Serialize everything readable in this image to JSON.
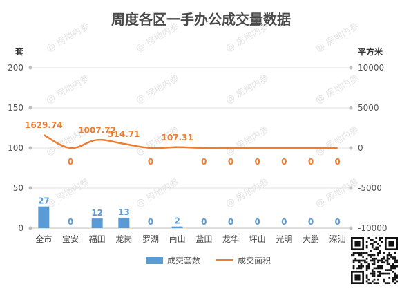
{
  "chart_data": {
    "type": "bar+line",
    "title": "周度各区一手办公成交量数据",
    "categories": [
      "全市",
      "宝安",
      "福田",
      "龙岗",
      "罗湖",
      "南山",
      "盐田",
      "龙华",
      "坪山",
      "光明",
      "大鹏",
      "深汕"
    ],
    "left_axis": {
      "unit": "套",
      "ticks": [
        "0",
        "50",
        "100",
        "150",
        "200"
      ],
      "range": [
        0,
        200
      ]
    },
    "right_axis": {
      "unit": "平方米",
      "ticks": [
        "-10000",
        "-5000",
        "0",
        "5000",
        "10000"
      ],
      "range": [
        -10000,
        10000
      ]
    },
    "series": [
      {
        "name": "成交套数",
        "kind": "bar",
        "axis": "left",
        "color": "#5b9bd5",
        "values": [
          27,
          0,
          12,
          13,
          0,
          2,
          0,
          0,
          0,
          0,
          0,
          0
        ],
        "labels": [
          "27",
          "0",
          "12",
          "13",
          "0",
          "2",
          "0",
          "0",
          "0",
          "0",
          "0",
          "0"
        ]
      },
      {
        "name": "成交面积",
        "kind": "line",
        "axis": "right",
        "color": "#ed7d31",
        "values": [
          1629.74,
          0,
          1007.72,
          514.71,
          0,
          107.31,
          0,
          0,
          0,
          0,
          0,
          0
        ],
        "labels": [
          "1629.74",
          "0",
          "1007.72",
          "514.71",
          "0",
          "107.31",
          "0",
          "0",
          "0",
          "0",
          "0",
          "0"
        ]
      }
    ],
    "legend_position": "bottom",
    "grid": true
  }
}
